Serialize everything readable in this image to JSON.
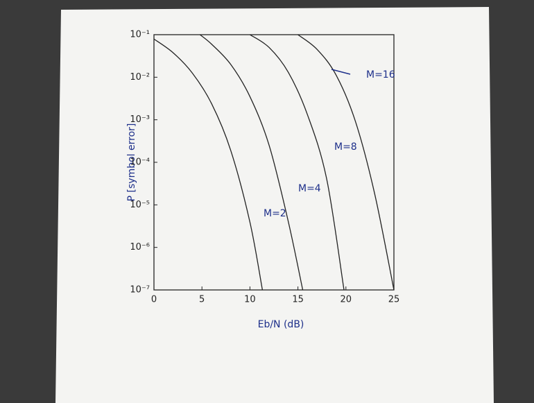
{
  "chart_data": {
    "type": "line",
    "y_label": "P [symbol error]",
    "x_label": "Eb/N (dB)",
    "xlim": [
      0,
      25
    ],
    "xticks": [
      0,
      5,
      10,
      15,
      20,
      25
    ],
    "ylim": [
      1e-07,
      0.1
    ],
    "log_y": true,
    "yticks": [
      {
        "value": 0.1,
        "label": "10⁻¹"
      },
      {
        "value": 0.01,
        "label": "10⁻²"
      },
      {
        "value": 0.001,
        "label": "10⁻³"
      },
      {
        "value": 0.0001,
        "label": "10⁻⁴"
      },
      {
        "value": 1e-05,
        "label": "10⁻⁵"
      },
      {
        "value": 1e-06,
        "label": "10⁻⁶"
      },
      {
        "value": 1e-07,
        "label": "10⁻⁷"
      }
    ],
    "series": [
      {
        "name": "M=2",
        "color": "#222222",
        "x": [
          0,
          2,
          4,
          6,
          8,
          10,
          11.3
        ],
        "values": [
          0.079,
          0.0375,
          0.0125,
          0.0024,
          0.00019,
          3.9e-06,
          1e-07
        ]
      },
      {
        "name": "M=4",
        "color": "#222222",
        "x": [
          4.8,
          6,
          8,
          10,
          12,
          14,
          15.5
        ],
        "values": [
          0.1,
          0.06,
          0.02,
          0.0035,
          0.00025,
          4e-06,
          1e-07
        ]
      },
      {
        "name": "M=8",
        "color": "#222222",
        "x": [
          10,
          12,
          14,
          16,
          18,
          19.8
        ],
        "values": [
          0.1,
          0.05,
          0.013,
          0.0013,
          4e-05,
          1e-07
        ]
      },
      {
        "name": "M=16",
        "color": "#222222",
        "x": [
          15,
          17,
          19,
          21,
          23,
          25
        ],
        "values": [
          0.1,
          0.045,
          0.011,
          0.0009,
          1.8e-05,
          1e-07
        ]
      }
    ]
  }
}
